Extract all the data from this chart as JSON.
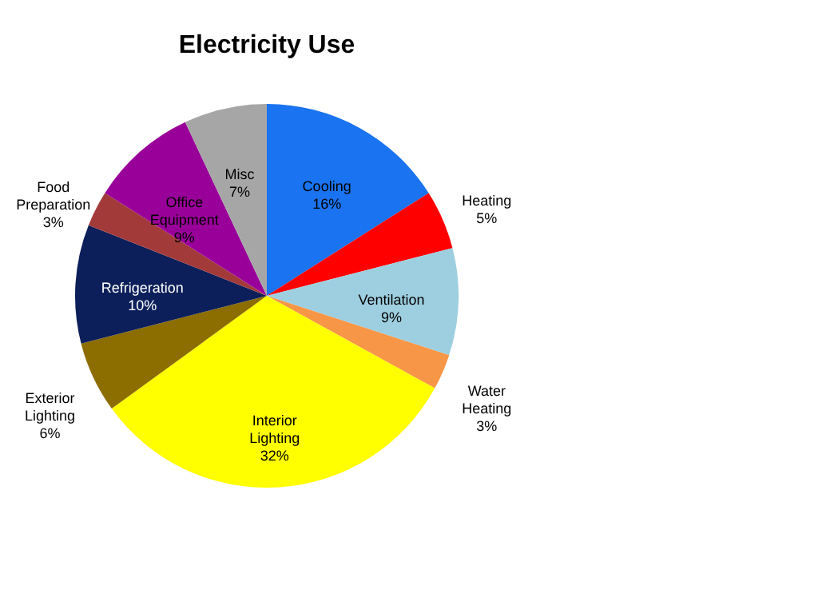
{
  "chart_data": {
    "type": "pie",
    "title": "Electricity Use",
    "categories": [
      "Cooling",
      "Heating",
      "Ventilation",
      "Water Heating",
      "Interior Lighting",
      "Exterior Lighting",
      "Refrigeration",
      "Food Preparation",
      "Office Equipment",
      "Misc"
    ],
    "values": [
      16,
      5,
      9,
      3,
      32,
      6,
      10,
      3,
      9,
      7
    ],
    "value_labels": [
      "16%",
      "5%",
      "9%",
      "3%",
      "32%",
      "6%",
      "10%",
      "3%",
      "9%",
      "7%"
    ],
    "colors": [
      "#1a73f0",
      "#ff0000",
      "#9ecfe0",
      "#f79646",
      "#ffff00",
      "#8c6d00",
      "#0c1f5a",
      "#a33a3a",
      "#990099",
      "#a6a6a6"
    ],
    "legend": false
  }
}
